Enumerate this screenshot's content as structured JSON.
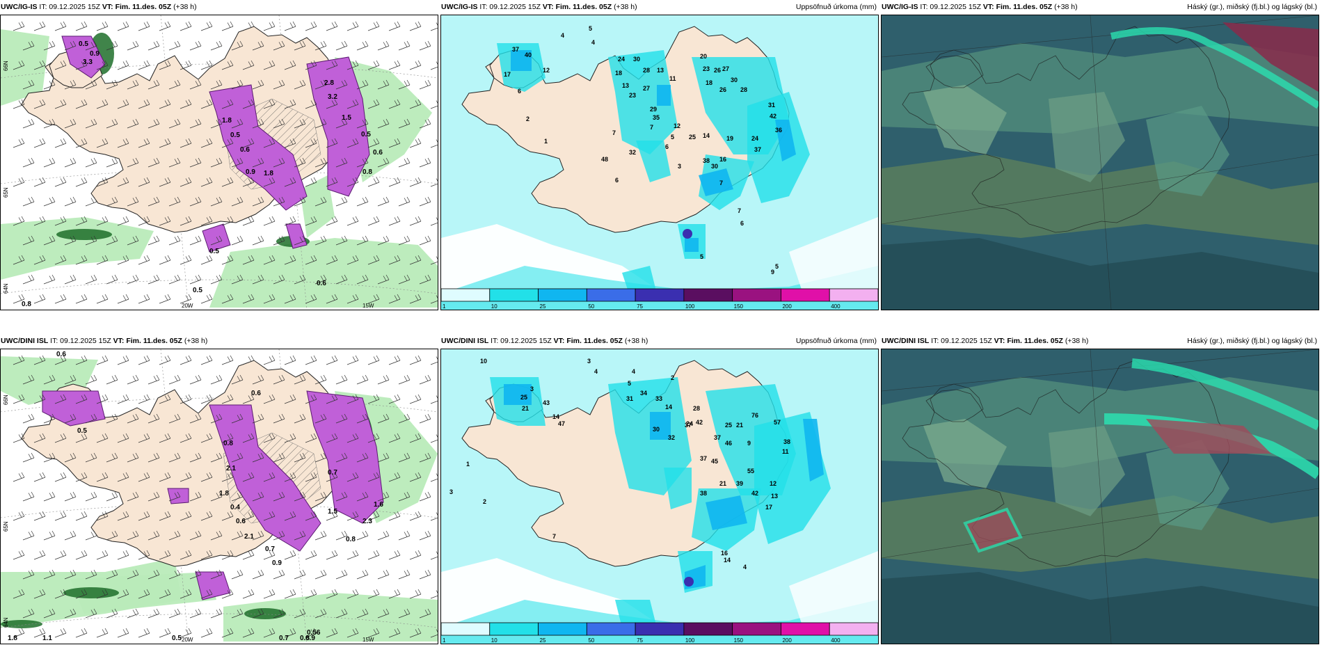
{
  "panels": [
    {
      "id": "p1",
      "kind": "clouds",
      "title_model": "UWC/IG-IS",
      "title_it": "IT: 09.12.2025 15Z",
      "title_vt_label": "VT: Fim. 11.des. 05Z",
      "title_lead": "(+38 h)",
      "legend": "",
      "lat_labels": [
        "66N",
        "65N",
        "64N"
      ],
      "lon_labels": [
        "20W",
        "15W"
      ],
      "values": [
        "0.5",
        "0.9",
        "3.3",
        "1.8",
        "0.5",
        "0.6",
        "0.9",
        "1.8",
        "2.8",
        "3.2",
        "1.5",
        "0.5",
        "0.6",
        "0.8",
        "0.5",
        "0.8",
        "0.6",
        "0.5"
      ]
    },
    {
      "id": "p2",
      "kind": "precip",
      "title_model": "UWC/IG-IS",
      "title_it": "IT: 09.12.2025 15Z",
      "title_vt_label": "VT: Fim. 11.des. 05Z",
      "title_lead": "(+38 h)",
      "legend": "Uppsöfnuð úrkoma (mm)",
      "lat_labels": [],
      "lon_labels": [],
      "values": [
        "4",
        "5",
        "4",
        "37",
        "40",
        "12",
        "17",
        "6",
        "2",
        "1",
        "24",
        "30",
        "28",
        "13",
        "11",
        "18",
        "13",
        "27",
        "23",
        "29",
        "35",
        "20",
        "23",
        "26",
        "27",
        "30",
        "18",
        "26",
        "28",
        "31",
        "42",
        "36",
        "12",
        "7",
        "7",
        "5",
        "25",
        "6",
        "14",
        "19",
        "24",
        "37",
        "38",
        "16",
        "30",
        "32",
        "48",
        "6",
        "3",
        "7",
        "7",
        "6",
        "5",
        "9",
        "5"
      ]
    },
    {
      "id": "p3",
      "kind": "sat",
      "title_model": "UWC/IG-IS",
      "title_it": "IT: 09.12.2025 15Z",
      "title_vt_label": "VT: Fim. 11.des. 05Z",
      "title_lead": "(+38 h)",
      "legend": "Háský (gr.), miðský (fj.bl.) og lágský (bl.)"
    },
    {
      "id": "p4",
      "kind": "clouds",
      "title_model": "UWC/DINI ISL",
      "title_it": "IT: 09.12.2025 15Z",
      "title_vt_label": "VT: Fim. 11.des. 05Z",
      "title_lead": "(+38 h)",
      "legend": "",
      "lat_labels": [
        "66N",
        "65N",
        "64N"
      ],
      "lon_labels": [
        "20W",
        "15W"
      ],
      "values": [
        "0.6",
        "0.6",
        "0.5",
        "0.8",
        "2.1",
        "1.8",
        "0.4",
        "0.6",
        "2.1",
        "0.7",
        "0.9",
        "1.5",
        "0.8",
        "2.3",
        "1.6",
        "0.7",
        "0.56",
        "0.8",
        "0.9",
        "1.8",
        "1.1",
        "0.5",
        "0.7"
      ]
    },
    {
      "id": "p5",
      "kind": "precip",
      "title_model": "UWC/DINI ISL",
      "title_it": "IT: 09.12.2025 15Z",
      "title_vt_label": "VT: Fim. 11.des. 05Z",
      "title_lead": "(+38 h)",
      "legend": "Uppsöfnuð úrkoma (mm)",
      "lat_labels": [],
      "lon_labels": [],
      "values": [
        "10",
        "3",
        "4",
        "4",
        "5",
        "2",
        "3",
        "25",
        "43",
        "21",
        "14",
        "47",
        "31",
        "34",
        "33",
        "14",
        "30",
        "37",
        "32",
        "28",
        "42",
        "24",
        "37",
        "45",
        "25",
        "21",
        "76",
        "57",
        "38",
        "11",
        "9",
        "46",
        "37",
        "38",
        "21",
        "39",
        "55",
        "42",
        "13",
        "17",
        "12",
        "16",
        "14",
        "4",
        "3",
        "1",
        "2",
        "7"
      ]
    },
    {
      "id": "p6",
      "kind": "sat",
      "title_model": "UWC/DINI ISL",
      "title_it": "IT: 09.12.2025 15Z",
      "title_vt_label": "VT: Fim. 11.des. 05Z",
      "title_lead": "(+38 h)",
      "legend": "Háský (gr.), miðský (fj.bl.) og lágský (bl.)"
    }
  ],
  "colorbar": {
    "labels": [
      "1",
      "10",
      "25",
      "50",
      "75",
      "100",
      "150",
      "200",
      "400"
    ],
    "colors": [
      "#dffcff",
      "#22e0e8",
      "#10b6f0",
      "#3a6de8",
      "#3a2fb0",
      "#5a0e60",
      "#9a1280",
      "#e010a8",
      "#f3b0f0"
    ]
  },
  "colors": {
    "land": "#f8e6d4",
    "water_light": "#b8f6f8",
    "cloud_green": "#b9ebb9",
    "cloud_dark": "#1f6e2a",
    "magenta": "#c060d8",
    "sat_base": "#3b6b70"
  }
}
